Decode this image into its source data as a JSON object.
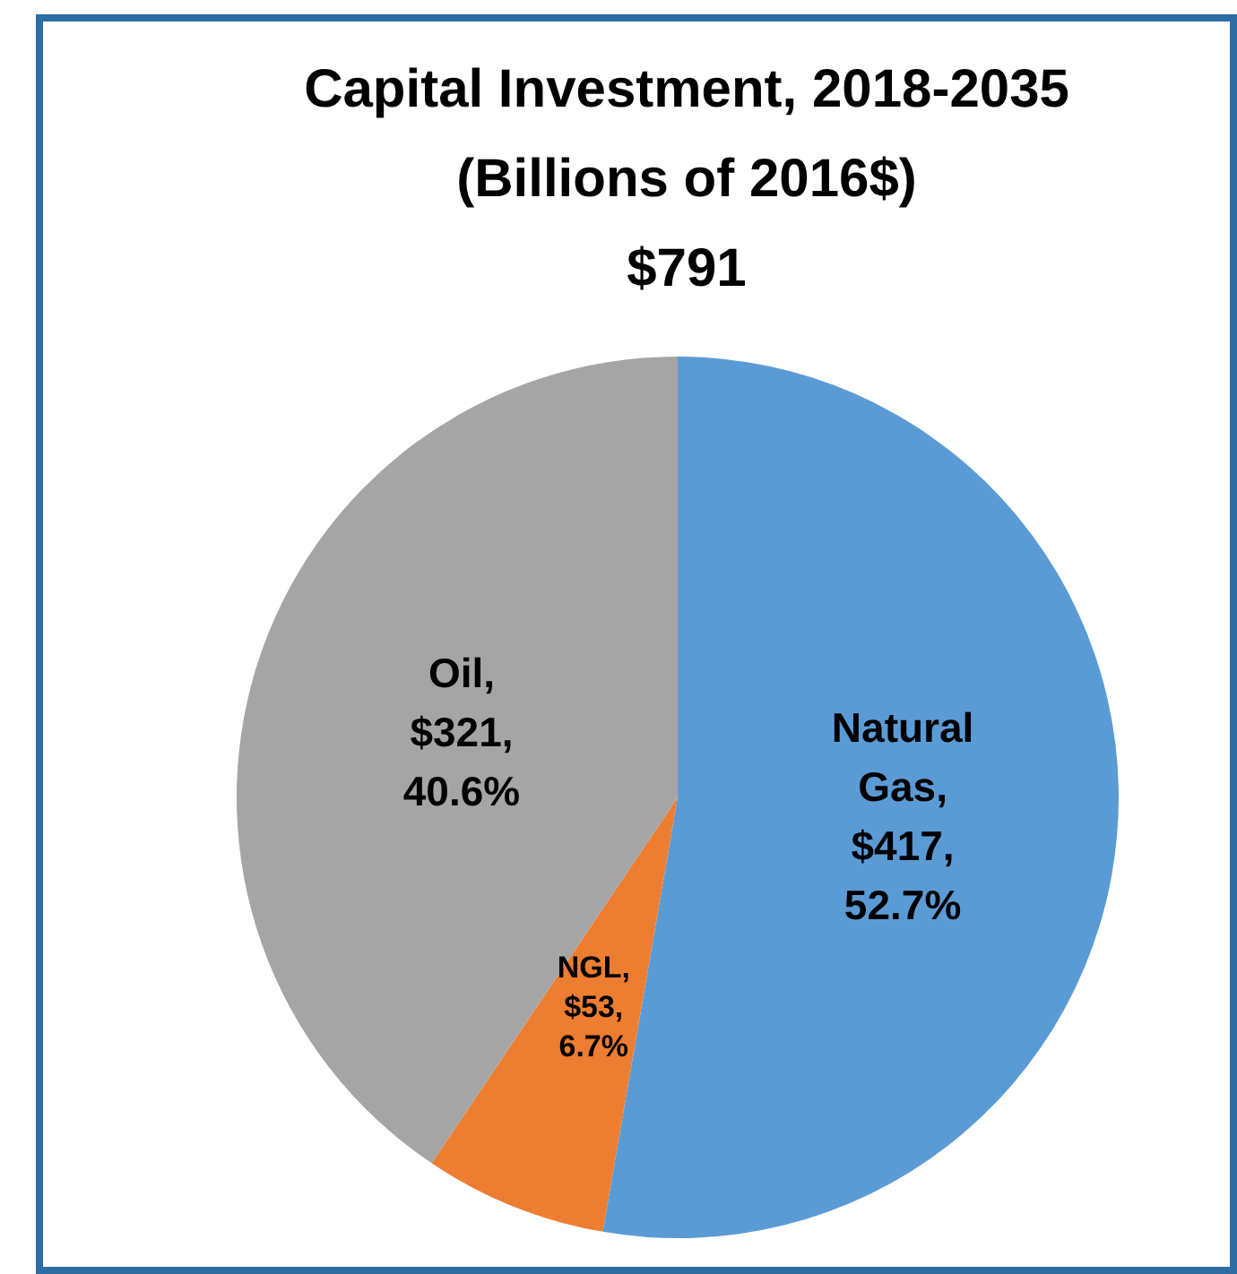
{
  "chart_data": {
    "type": "pie",
    "title": "Capital Investment, 2018-2035",
    "subtitle": "(Billions of 2016$)",
    "annotations": [
      "$791"
    ],
    "categories": [
      "Natural Gas",
      "NGL",
      "Oil"
    ],
    "values": [
      417,
      53,
      321
    ],
    "value_labels": [
      ", $417, 52.7%",
      ", $53, 6.7%",
      ", $321, 40.6%"
    ],
    "colors": [
      "#5b9bd5",
      "#ed7d31",
      "#a5a5a5"
    ],
    "legend": false
  }
}
